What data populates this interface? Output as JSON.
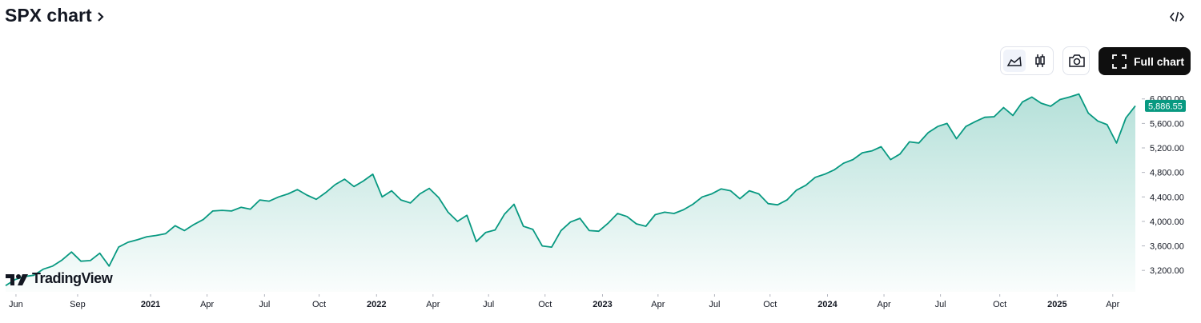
{
  "header": {
    "title": "SPX chart"
  },
  "toolbar": {
    "full_chart": "Full chart"
  },
  "watermark": "TradingView",
  "chart_data": {
    "type": "line",
    "color": "#089981",
    "values": [
      2950,
      3050,
      3100,
      3120,
      3220,
      3270,
      3370,
      3500,
      3350,
      3360,
      3480,
      3270,
      3580,
      3660,
      3700,
      3750,
      3770,
      3800,
      3930,
      3850,
      3950,
      4030,
      4170,
      4180,
      4170,
      4230,
      4200,
      4350,
      4330,
      4400,
      4450,
      4520,
      4430,
      4360,
      4470,
      4600,
      4690,
      4570,
      4660,
      4770,
      4400,
      4500,
      4350,
      4300,
      4450,
      4540,
      4390,
      4150,
      4000,
      4100,
      3670,
      3820,
      3860,
      4120,
      4280,
      3920,
      3870,
      3600,
      3580,
      3850,
      3990,
      4050,
      3850,
      3840,
      3970,
      4130,
      4080,
      3960,
      3920,
      4110,
      4150,
      4130,
      4190,
      4280,
      4400,
      4450,
      4530,
      4500,
      4370,
      4500,
      4450,
      4290,
      4270,
      4350,
      4510,
      4590,
      4720,
      4770,
      4840,
      4950,
      5010,
      5120,
      5150,
      5220,
      5010,
      5100,
      5300,
      5280,
      5450,
      5550,
      5600,
      5350,
      5550,
      5630,
      5700,
      5710,
      5860,
      5730,
      5950,
      6030,
      5930,
      5880,
      5990,
      6030,
      6080,
      5770,
      5640,
      5580,
      5280,
      5690,
      5886.55
    ],
    "value_labels": [
      null,
      null,
      null,
      null,
      null,
      null,
      null,
      null,
      null,
      null,
      null,
      null,
      null,
      null,
      null,
      null,
      null,
      null,
      null,
      null,
      null,
      null,
      null,
      null,
      null,
      null,
      null,
      null,
      null,
      null,
      null,
      null,
      null,
      null,
      null,
      null,
      null,
      null,
      null,
      null,
      null,
      null,
      null,
      null,
      null,
      null,
      null,
      null,
      null,
      null,
      null,
      null,
      null,
      null,
      null,
      null,
      null,
      null,
      null,
      null,
      null,
      null,
      null,
      null,
      null,
      null,
      null,
      null,
      null,
      null,
      null,
      null,
      null,
      null,
      null,
      null,
      null,
      null,
      null,
      null,
      null,
      null,
      null,
      null,
      null,
      null,
      null,
      null,
      null,
      null,
      null,
      null,
      null,
      null,
      null,
      null,
      null,
      null,
      null,
      null,
      null,
      null,
      null,
      null,
      null,
      null,
      null,
      null,
      null,
      null,
      null,
      null,
      null,
      null,
      null,
      null,
      null,
      null,
      null,
      null,
      "5,886.55"
    ],
    "xlim": [
      0,
      120
    ],
    "xticks": [
      {
        "value": 1.1,
        "label": "Jun"
      },
      {
        "value": 7.65,
        "label": "Sep"
      },
      {
        "value": 15.4,
        "label": "2021"
      },
      {
        "value": 21.4,
        "label": "Apr"
      },
      {
        "value": 27.5,
        "label": "Jul"
      },
      {
        "value": 33.3,
        "label": "Oct"
      },
      {
        "value": 39.4,
        "label": "2022"
      },
      {
        "value": 45.4,
        "label": "Apr"
      },
      {
        "value": 51.3,
        "label": "Jul"
      },
      {
        "value": 57.3,
        "label": "Oct"
      },
      {
        "value": 63.4,
        "label": "2023"
      },
      {
        "value": 69.3,
        "label": "Apr"
      },
      {
        "value": 75.3,
        "label": "Jul"
      },
      {
        "value": 81.2,
        "label": "Oct"
      },
      {
        "value": 87.3,
        "label": "2024"
      },
      {
        "value": 93.3,
        "label": "Apr"
      },
      {
        "value": 99.3,
        "label": "Jul"
      },
      {
        "value": 105.6,
        "label": "Oct"
      },
      {
        "value": 111.7,
        "label": "2025"
      },
      {
        "value": 117.6,
        "label": "Apr"
      }
    ],
    "ylim": [
      2850,
      6310
    ],
    "yticks": [
      {
        "value": 3200,
        "label": "3,200.00"
      },
      {
        "value": 3600,
        "label": "3,600.00"
      },
      {
        "value": 4000,
        "label": "4,000.00"
      },
      {
        "value": 4400,
        "label": "4,400.00"
      },
      {
        "value": 4800,
        "label": "4,800.00"
      },
      {
        "value": 5200,
        "label": "5,200.00"
      },
      {
        "value": 5600,
        "label": "5,600.00"
      },
      {
        "value": 6000,
        "label": "6,000.00"
      }
    ]
  }
}
